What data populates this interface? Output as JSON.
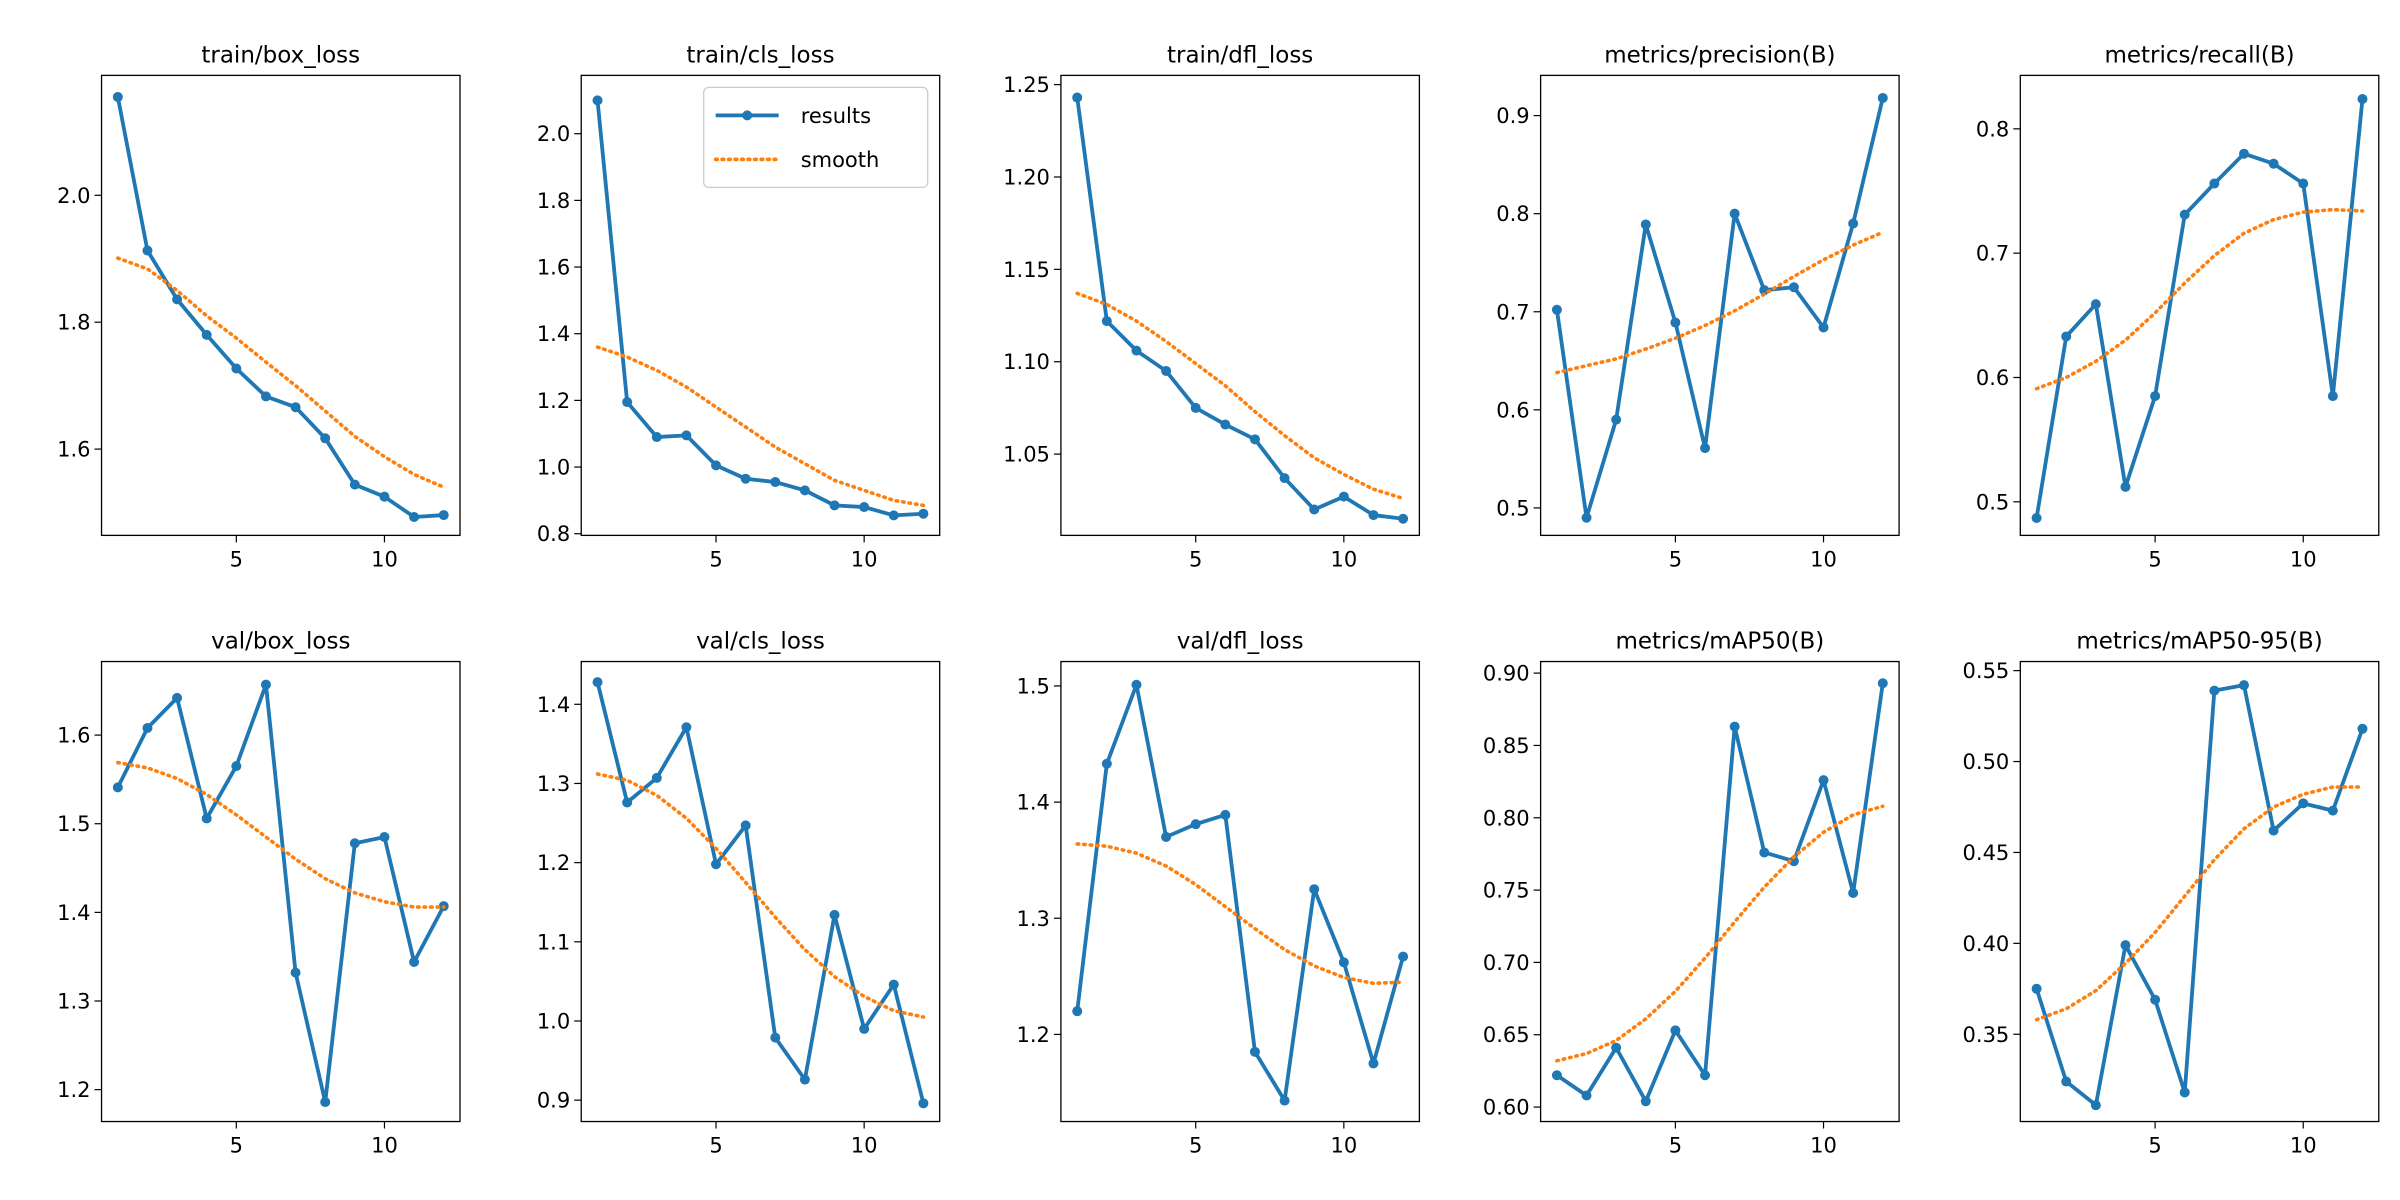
{
  "chart_data": [
    {
      "type": "line",
      "title": "train/box_loss",
      "x": [
        1,
        2,
        3,
        4,
        5,
        6,
        7,
        8,
        9,
        10,
        11,
        12
      ],
      "xlim": [
        0.45,
        12.55
      ],
      "xticks": [
        5,
        10
      ],
      "ylim": [
        1.464,
        2.189
      ],
      "yticks": [
        1.6,
        1.8,
        {
          "value": 2,
          "label": "2.0"
        }
      ],
      "series": [
        {
          "color": "#1f77b4",
          "linestyle": "solid",
          "marker": "circle",
          "values": [
            2.155,
            1.913,
            1.836,
            1.78,
            1.727,
            1.683,
            1.666,
            1.617,
            1.544,
            1.525,
            1.493,
            1.496
          ]
        },
        {
          "color": "#ff7f0e",
          "linestyle": "dotted",
          "values": [
            1.901,
            1.884,
            1.85,
            1.81,
            1.775,
            1.737,
            1.7,
            1.66,
            1.62,
            1.588,
            1.56,
            1.54
          ]
        }
      ]
    },
    {
      "type": "line",
      "title": "train/cls_loss",
      "x": [
        1,
        2,
        3,
        4,
        5,
        6,
        7,
        8,
        9,
        10,
        11,
        12
      ],
      "xlim": [
        0.45,
        12.55
      ],
      "xticks": [
        5,
        10
      ],
      "ylim": [
        0.795,
        2.175
      ],
      "yticks": [
        0.8,
        {
          "value": 1,
          "label": "1.0"
        },
        1.2,
        1.4,
        1.6,
        1.8,
        {
          "value": 2,
          "label": "2.0"
        }
      ],
      "legend": "upper right",
      "series": [
        {
          "name": "results",
          "color": "#1f77b4",
          "linestyle": "solid",
          "marker": "circle",
          "values": [
            2.1,
            1.195,
            1.09,
            1.095,
            1.005,
            0.965,
            0.955,
            0.93,
            0.885,
            0.88,
            0.855,
            0.86
          ]
        },
        {
          "name": "smooth",
          "color": "#ff7f0e",
          "linestyle": "dotted",
          "values": [
            1.36,
            1.33,
            1.29,
            1.24,
            1.18,
            1.12,
            1.06,
            1.01,
            0.96,
            0.93,
            0.9,
            0.885
          ]
        }
      ]
    },
    {
      "type": "line",
      "title": "train/dfl_loss",
      "x": [
        1,
        2,
        3,
        4,
        5,
        6,
        7,
        8,
        9,
        10,
        11,
        12
      ],
      "xlim": [
        0.45,
        12.55
      ],
      "xticks": [
        5,
        10
      ],
      "ylim": [
        1.006,
        1.255
      ],
      "yticks": [
        1.05,
        {
          "value": 1.1,
          "label": "1.10"
        },
        1.15,
        {
          "value": 1.2,
          "label": "1.20"
        },
        1.25
      ],
      "series": [
        {
          "color": "#1f77b4",
          "linestyle": "solid",
          "marker": "circle",
          "values": [
            1.243,
            1.122,
            1.106,
            1.095,
            1.075,
            1.066,
            1.058,
            1.037,
            1.02,
            1.027,
            1.017,
            1.015
          ]
        },
        {
          "color": "#ff7f0e",
          "linestyle": "dotted",
          "values": [
            1.137,
            1.131,
            1.122,
            1.111,
            1.099,
            1.087,
            1.073,
            1.06,
            1.048,
            1.039,
            1.031,
            1.026
          ]
        }
      ]
    },
    {
      "type": "line",
      "title": "metrics/precision(B)",
      "x": [
        1,
        2,
        3,
        4,
        5,
        6,
        7,
        8,
        9,
        10,
        11,
        12
      ],
      "xlim": [
        0.45,
        12.55
      ],
      "xticks": [
        5,
        10
      ],
      "ylim": [
        0.472,
        0.941
      ],
      "yticks": [
        0.5,
        0.6,
        0.7,
        0.8,
        0.9
      ],
      "series": [
        {
          "color": "#1f77b4",
          "linestyle": "solid",
          "marker": "circle",
          "values": [
            0.702,
            0.49,
            0.59,
            0.789,
            0.689,
            0.561,
            0.8,
            0.722,
            0.725,
            0.684,
            0.79,
            0.918
          ]
        },
        {
          "color": "#ff7f0e",
          "linestyle": "dotted",
          "values": [
            0.638,
            0.645,
            0.652,
            0.662,
            0.673,
            0.686,
            0.701,
            0.718,
            0.736,
            0.753,
            0.768,
            0.781
          ]
        }
      ]
    },
    {
      "type": "line",
      "title": "metrics/recall(B)",
      "x": [
        1,
        2,
        3,
        4,
        5,
        6,
        7,
        8,
        9,
        10,
        11,
        12
      ],
      "xlim": [
        0.45,
        12.55
      ],
      "xticks": [
        5,
        10
      ],
      "ylim": [
        0.473,
        0.843
      ],
      "yticks": [
        0.5,
        0.6,
        0.7,
        0.8
      ],
      "series": [
        {
          "color": "#1f77b4",
          "linestyle": "solid",
          "marker": "circle",
          "values": [
            0.487,
            0.633,
            0.659,
            0.512,
            0.585,
            0.731,
            0.756,
            0.78,
            0.772,
            0.756,
            0.585,
            0.824
          ]
        },
        {
          "color": "#ff7f0e",
          "linestyle": "dotted",
          "values": [
            0.591,
            0.6,
            0.613,
            0.63,
            0.652,
            0.676,
            0.698,
            0.716,
            0.727,
            0.733,
            0.735,
            0.734
          ]
        }
      ]
    },
    {
      "type": "line",
      "title": "val/box_loss",
      "x": [
        1,
        2,
        3,
        4,
        5,
        6,
        7,
        8,
        9,
        10,
        11,
        12
      ],
      "xlim": [
        0.45,
        12.55
      ],
      "xticks": [
        5,
        10
      ],
      "ylim": [
        1.164,
        1.683
      ],
      "yticks": [
        1.2,
        1.3,
        1.4,
        1.5,
        1.6
      ],
      "series": [
        {
          "color": "#1f77b4",
          "linestyle": "solid",
          "marker": "circle",
          "values": [
            1.541,
            1.608,
            1.642,
            1.506,
            1.565,
            1.657,
            1.332,
            1.186,
            1.478,
            1.485,
            1.344,
            1.407
          ]
        },
        {
          "color": "#ff7f0e",
          "linestyle": "dotted",
          "values": [
            1.569,
            1.563,
            1.551,
            1.533,
            1.51,
            1.485,
            1.46,
            1.438,
            1.422,
            1.412,
            1.406,
            1.406
          ]
        }
      ]
    },
    {
      "type": "line",
      "title": "val/cls_loss",
      "x": [
        1,
        2,
        3,
        4,
        5,
        6,
        7,
        8,
        9,
        10,
        11,
        12
      ],
      "xlim": [
        0.45,
        12.55
      ],
      "xticks": [
        5,
        10
      ],
      "ylim": [
        0.873,
        1.454
      ],
      "yticks": [
        0.9,
        {
          "value": 1,
          "label": "1.0"
        },
        1.1,
        1.2,
        1.3,
        1.4
      ],
      "series": [
        {
          "color": "#1f77b4",
          "linestyle": "solid",
          "marker": "circle",
          "values": [
            1.428,
            1.276,
            1.307,
            1.371,
            1.198,
            1.247,
            0.979,
            0.926,
            1.134,
            0.99,
            1.046,
            0.896
          ]
        },
        {
          "color": "#ff7f0e",
          "linestyle": "dotted",
          "values": [
            1.312,
            1.304,
            1.285,
            1.256,
            1.218,
            1.175,
            1.131,
            1.09,
            1.056,
            1.031,
            1.013,
            1.005
          ]
        }
      ]
    },
    {
      "type": "line",
      "title": "val/dfl_loss",
      "x": [
        1,
        2,
        3,
        4,
        5,
        6,
        7,
        8,
        9,
        10,
        11,
        12
      ],
      "xlim": [
        0.45,
        12.55
      ],
      "xticks": [
        5,
        10
      ],
      "ylim": [
        1.125,
        1.521
      ],
      "yticks": [
        1.2,
        1.3,
        1.4,
        1.5
      ],
      "series": [
        {
          "color": "#1f77b4",
          "linestyle": "solid",
          "marker": "circle",
          "values": [
            1.22,
            1.433,
            1.501,
            1.37,
            1.381,
            1.389,
            1.185,
            1.143,
            1.325,
            1.262,
            1.175,
            1.267
          ]
        },
        {
          "color": "#ff7f0e",
          "linestyle": "dotted",
          "values": [
            1.364,
            1.362,
            1.356,
            1.345,
            1.329,
            1.31,
            1.291,
            1.273,
            1.259,
            1.249,
            1.244,
            1.245
          ]
        }
      ]
    },
    {
      "type": "line",
      "title": "metrics/mAP50(B)",
      "x": [
        1,
        2,
        3,
        4,
        5,
        6,
        7,
        8,
        9,
        10,
        11,
        12
      ],
      "xlim": [
        0.45,
        12.55
      ],
      "xticks": [
        5,
        10
      ],
      "ylim": [
        0.59,
        0.908
      ],
      "yticks": [
        {
          "value": 0.6,
          "label": "0.60"
        },
        0.65,
        {
          "value": 0.7,
          "label": "0.70"
        },
        0.75,
        {
          "value": 0.8,
          "label": "0.80"
        },
        0.85,
        {
          "value": 0.9,
          "label": "0.90"
        }
      ],
      "series": [
        {
          "color": "#1f77b4",
          "linestyle": "solid",
          "marker": "circle",
          "values": [
            0.622,
            0.608,
            0.641,
            0.604,
            0.653,
            0.622,
            0.863,
            0.776,
            0.77,
            0.826,
            0.748,
            0.893
          ]
        },
        {
          "color": "#ff7f0e",
          "linestyle": "dotted",
          "values": [
            0.632,
            0.637,
            0.646,
            0.661,
            0.68,
            0.703,
            0.728,
            0.752,
            0.773,
            0.79,
            0.802,
            0.808
          ]
        }
      ]
    },
    {
      "type": "line",
      "title": "metrics/mAP50-95(B)",
      "x": [
        1,
        2,
        3,
        4,
        5,
        6,
        7,
        8,
        9,
        10,
        11,
        12
      ],
      "xlim": [
        0.45,
        12.55
      ],
      "xticks": [
        5,
        10
      ],
      "ylim": [
        0.302,
        0.555
      ],
      "yticks": [
        0.35,
        {
          "value": 0.4,
          "label": "0.40"
        },
        0.45,
        {
          "value": 0.5,
          "label": "0.50"
        },
        0.55
      ],
      "series": [
        {
          "color": "#1f77b4",
          "linestyle": "solid",
          "marker": "circle",
          "values": [
            0.375,
            0.324,
            0.311,
            0.399,
            0.369,
            0.318,
            0.539,
            0.542,
            0.462,
            0.477,
            0.473,
            0.518
          ]
        },
        {
          "color": "#ff7f0e",
          "linestyle": "dotted",
          "values": [
            0.358,
            0.364,
            0.374,
            0.389,
            0.406,
            0.426,
            0.446,
            0.463,
            0.475,
            0.482,
            0.486,
            0.486
          ]
        }
      ]
    }
  ]
}
